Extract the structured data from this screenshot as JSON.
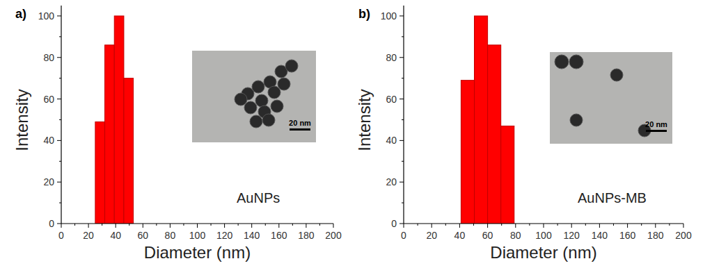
{
  "chart_data": [
    {
      "type": "histogram",
      "panel_label": "a)",
      "annotations": [
        "AuNPs",
        "20 nm"
      ],
      "x_label": "Diameter (nm)",
      "y_label": "Intensity",
      "bins": [
        25,
        32,
        39,
        46,
        53
      ],
      "values": [
        49,
        86,
        100,
        70
      ],
      "color": "#ff0000",
      "xlim": [
        0,
        200
      ],
      "xticks": [
        0,
        20,
        40,
        60,
        80,
        100,
        120,
        140,
        160,
        180,
        200
      ],
      "ylim": [
        0,
        105
      ],
      "yticks": [
        0,
        20,
        40,
        60,
        80,
        100
      ],
      "grid": false
    },
    {
      "type": "histogram",
      "panel_label": "b)",
      "annotations": [
        "AuNPs-MB",
        "20 nm"
      ],
      "x_label": "Diameter (nm)",
      "y_label": "Intensity",
      "bins": [
        41,
        50.5,
        60,
        69.5,
        79
      ],
      "values": [
        69,
        100,
        86,
        47
      ],
      "color": "#ff0000",
      "xlim": [
        0,
        200
      ],
      "xticks": [
        0,
        20,
        40,
        60,
        80,
        100,
        120,
        140,
        160,
        180,
        200
      ],
      "ylim": [
        0,
        105
      ],
      "yticks": [
        0,
        20,
        40,
        60,
        80,
        100
      ],
      "grid": false
    }
  ]
}
